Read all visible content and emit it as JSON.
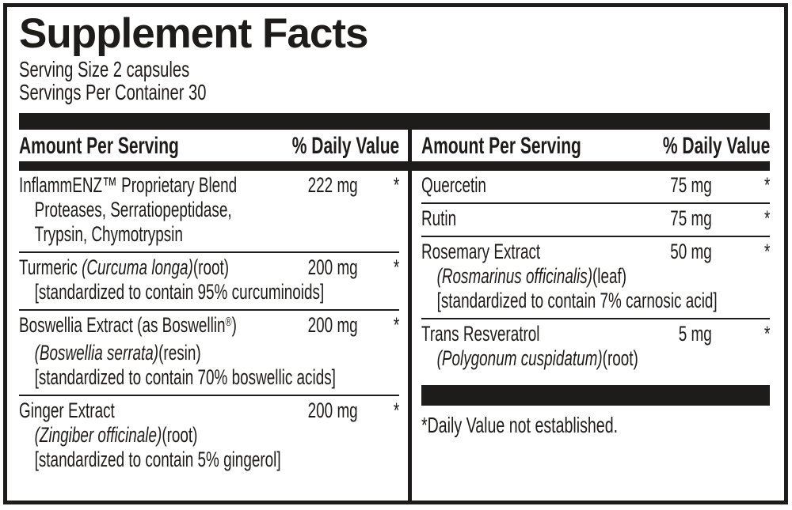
{
  "title": "Supplement Facts",
  "serving": {
    "size": "Serving Size 2 capsules",
    "per_container": "Servings Per Container 30"
  },
  "column_header": {
    "amount_label": "Amount Per Serving",
    "dv_label": "% Daily Value"
  },
  "columns": {
    "left": {
      "rows": [
        {
          "main": [
            {
              "t": "InflammENZ™ Proprietary Blend",
              "i": false
            }
          ],
          "amount": "222 mg",
          "dv": "*",
          "subs": [
            [
              {
                "t": "Proteases, Serratiopeptidase,",
                "i": false
              }
            ],
            [
              {
                "t": "Trypsin, Chymotrypsin",
                "i": false
              }
            ]
          ]
        },
        {
          "main": [
            {
              "t": "Turmeric ",
              "i": false
            },
            {
              "t": "(Curcuma longa)",
              "i": true
            },
            {
              "t": "(root)",
              "i": false
            }
          ],
          "amount": "200 mg",
          "dv": "*",
          "subs": [
            [
              {
                "t": "[standardized to contain 95% curcuminoids]",
                "i": false
              }
            ]
          ]
        },
        {
          "main": [
            {
              "t": "Boswellia Extract (as Boswellin",
              "i": false
            },
            {
              "t": "®",
              "i": false,
              "sup": true
            },
            {
              "t": ")",
              "i": false
            }
          ],
          "amount": "200 mg",
          "dv": "*",
          "subs": [
            [
              {
                "t": "(Boswellia serrata)",
                "i": true
              },
              {
                "t": "(resin)",
                "i": false
              }
            ],
            [
              {
                "t": "[standardized to contain 70% boswellic acids]",
                "i": false
              }
            ]
          ]
        },
        {
          "main": [
            {
              "t": "Ginger Extract",
              "i": false
            }
          ],
          "amount": "200 mg",
          "dv": "*",
          "subs": [
            [
              {
                "t": "(Zingiber officinale)",
                "i": true
              },
              {
                "t": "(root)",
                "i": false
              }
            ],
            [
              {
                "t": "[standardized to contain 5% gingerol]",
                "i": false
              }
            ]
          ]
        }
      ]
    },
    "right": {
      "rows": [
        {
          "main": [
            {
              "t": "Quercetin",
              "i": false
            }
          ],
          "amount": "75 mg",
          "dv": "*",
          "subs": []
        },
        {
          "main": [
            {
              "t": "Rutin",
              "i": false
            }
          ],
          "amount": "75 mg",
          "dv": "*",
          "subs": []
        },
        {
          "main": [
            {
              "t": "Rosemary Extract",
              "i": false
            }
          ],
          "amount": "50 mg",
          "dv": "*",
          "subs": [
            [
              {
                "t": "(Rosmarinus officinalis)",
                "i": true
              },
              {
                "t": "(leaf)",
                "i": false
              }
            ],
            [
              {
                "t": "[standardized to contain 7% carnosic acid]",
                "i": false
              }
            ]
          ]
        },
        {
          "main": [
            {
              "t": "Trans Resveratrol",
              "i": false
            }
          ],
          "amount": "5 mg",
          "dv": "*",
          "subs": [
            [
              {
                "t": "(Polygonum cuspidatum)",
                "i": true
              },
              {
                "t": "(root)",
                "i": false
              }
            ]
          ]
        }
      ],
      "footnote": "*Daily Value not established."
    }
  },
  "colors": {
    "ink": "#1d1c1a",
    "background": "#ffffff"
  }
}
